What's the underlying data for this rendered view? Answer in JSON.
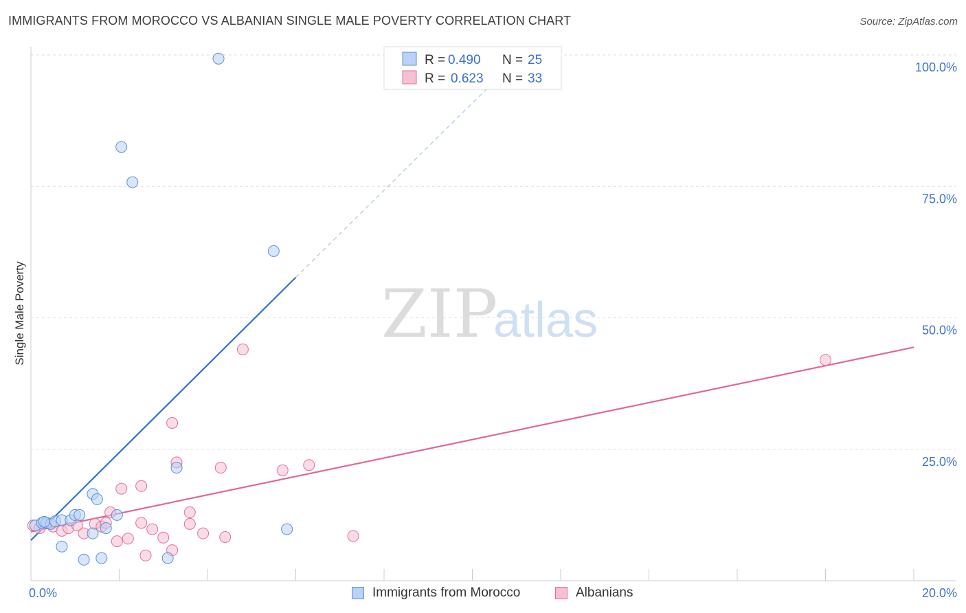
{
  "title": "IMMIGRANTS FROM MOROCCO VS ALBANIAN SINGLE MALE POVERTY CORRELATION CHART",
  "source": "Source: ZipAtlas.com",
  "watermark": {
    "zip": "ZIP",
    "atlas": "atlas"
  },
  "colors": {
    "blue": "#5b8fd8",
    "blue_fill": "#b9d2f5",
    "pink": "#e46f98",
    "pink_fill": "#f6bfd2",
    "blue_line": "#2f72d0",
    "pink_line": "#e0679a"
  },
  "legend": {
    "r_label": "R =",
    "n_label": "N =",
    "rows": [
      {
        "r": "0.490",
        "n": "25"
      },
      {
        "r": "0.623",
        "n": "33"
      }
    ]
  },
  "chart_data": {
    "type": "scatter",
    "title": "IMMIGRANTS FROM MOROCCO VS ALBANIAN SINGLE MALE POVERTY CORRELATION CHART",
    "xlabel": "",
    "ylabel": "Single Male Poverty",
    "xlim": [
      0,
      20
    ],
    "ylim": [
      0,
      100
    ],
    "x_ticks": [
      "0.0%",
      "20.0%"
    ],
    "y_ticks": [
      {
        "value": 25,
        "label": "25.0%"
      },
      {
        "value": 50,
        "label": "50.0%"
      },
      {
        "value": 75,
        "label": "75.0%"
      },
      {
        "value": 100,
        "label": "100.0%"
      }
    ],
    "series": [
      {
        "name": "Immigrants from Morocco",
        "R": 0.49,
        "N": 25,
        "points": [
          [
            0.1,
            10.5
          ],
          [
            0.25,
            11
          ],
          [
            0.35,
            11
          ],
          [
            0.45,
            10.8
          ],
          [
            0.55,
            11.3
          ],
          [
            0.7,
            11.5
          ],
          [
            0.9,
            11.5
          ],
          [
            1.0,
            12.5
          ],
          [
            1.1,
            12.5
          ],
          [
            0.7,
            6.5
          ],
          [
            1.2,
            4.0
          ],
          [
            1.6,
            4.3
          ],
          [
            1.4,
            9.0
          ],
          [
            1.7,
            10.0
          ],
          [
            1.4,
            16.5
          ],
          [
            1.5,
            15.5
          ],
          [
            1.95,
            12.5
          ],
          [
            3.1,
            4.3
          ],
          [
            3.3,
            21.5
          ],
          [
            2.05,
            82.5
          ],
          [
            2.3,
            75.8
          ],
          [
            4.25,
            99.3
          ],
          [
            5.5,
            62.7
          ],
          [
            5.8,
            9.8
          ],
          [
            0.3,
            11.2
          ]
        ],
        "trend": {
          "x0": 0.0,
          "y0": 7.7,
          "x1": 6.0,
          "y1": 57.7,
          "dash_to_x": 10.5,
          "dash_to_y": 95
        }
      },
      {
        "name": "Albanians",
        "R": 0.623,
        "N": 33,
        "points": [
          [
            0.05,
            10.5
          ],
          [
            0.2,
            10.0
          ],
          [
            0.35,
            11.0
          ],
          [
            0.5,
            10.3
          ],
          [
            0.7,
            9.5
          ],
          [
            0.85,
            10.0
          ],
          [
            1.05,
            10.5
          ],
          [
            1.2,
            9.0
          ],
          [
            1.45,
            10.8
          ],
          [
            1.6,
            10.3
          ],
          [
            1.8,
            13.0
          ],
          [
            1.95,
            7.5
          ],
          [
            2.2,
            8.0
          ],
          [
            2.5,
            11.0
          ],
          [
            2.6,
            4.8
          ],
          [
            2.75,
            9.8
          ],
          [
            3.0,
            8.2
          ],
          [
            3.2,
            5.8
          ],
          [
            3.6,
            10.8
          ],
          [
            3.9,
            9.0
          ],
          [
            4.4,
            8.3
          ],
          [
            4.3,
            21.5
          ],
          [
            3.3,
            22.5
          ],
          [
            3.6,
            13.0
          ],
          [
            2.5,
            18.0
          ],
          [
            2.05,
            17.5
          ],
          [
            1.7,
            11.0
          ],
          [
            3.2,
            30.0
          ],
          [
            4.8,
            44.0
          ],
          [
            5.7,
            21.0
          ],
          [
            6.3,
            22.0
          ],
          [
            7.3,
            8.5
          ],
          [
            18.0,
            42.0
          ]
        ],
        "trend": {
          "x0": 0.0,
          "y0": 9.3,
          "x1": 20.0,
          "y1": 44.4
        }
      }
    ],
    "legend_position": "top-center"
  },
  "bottom_legend": [
    "Immigrants from Morocco",
    "Albanians"
  ]
}
